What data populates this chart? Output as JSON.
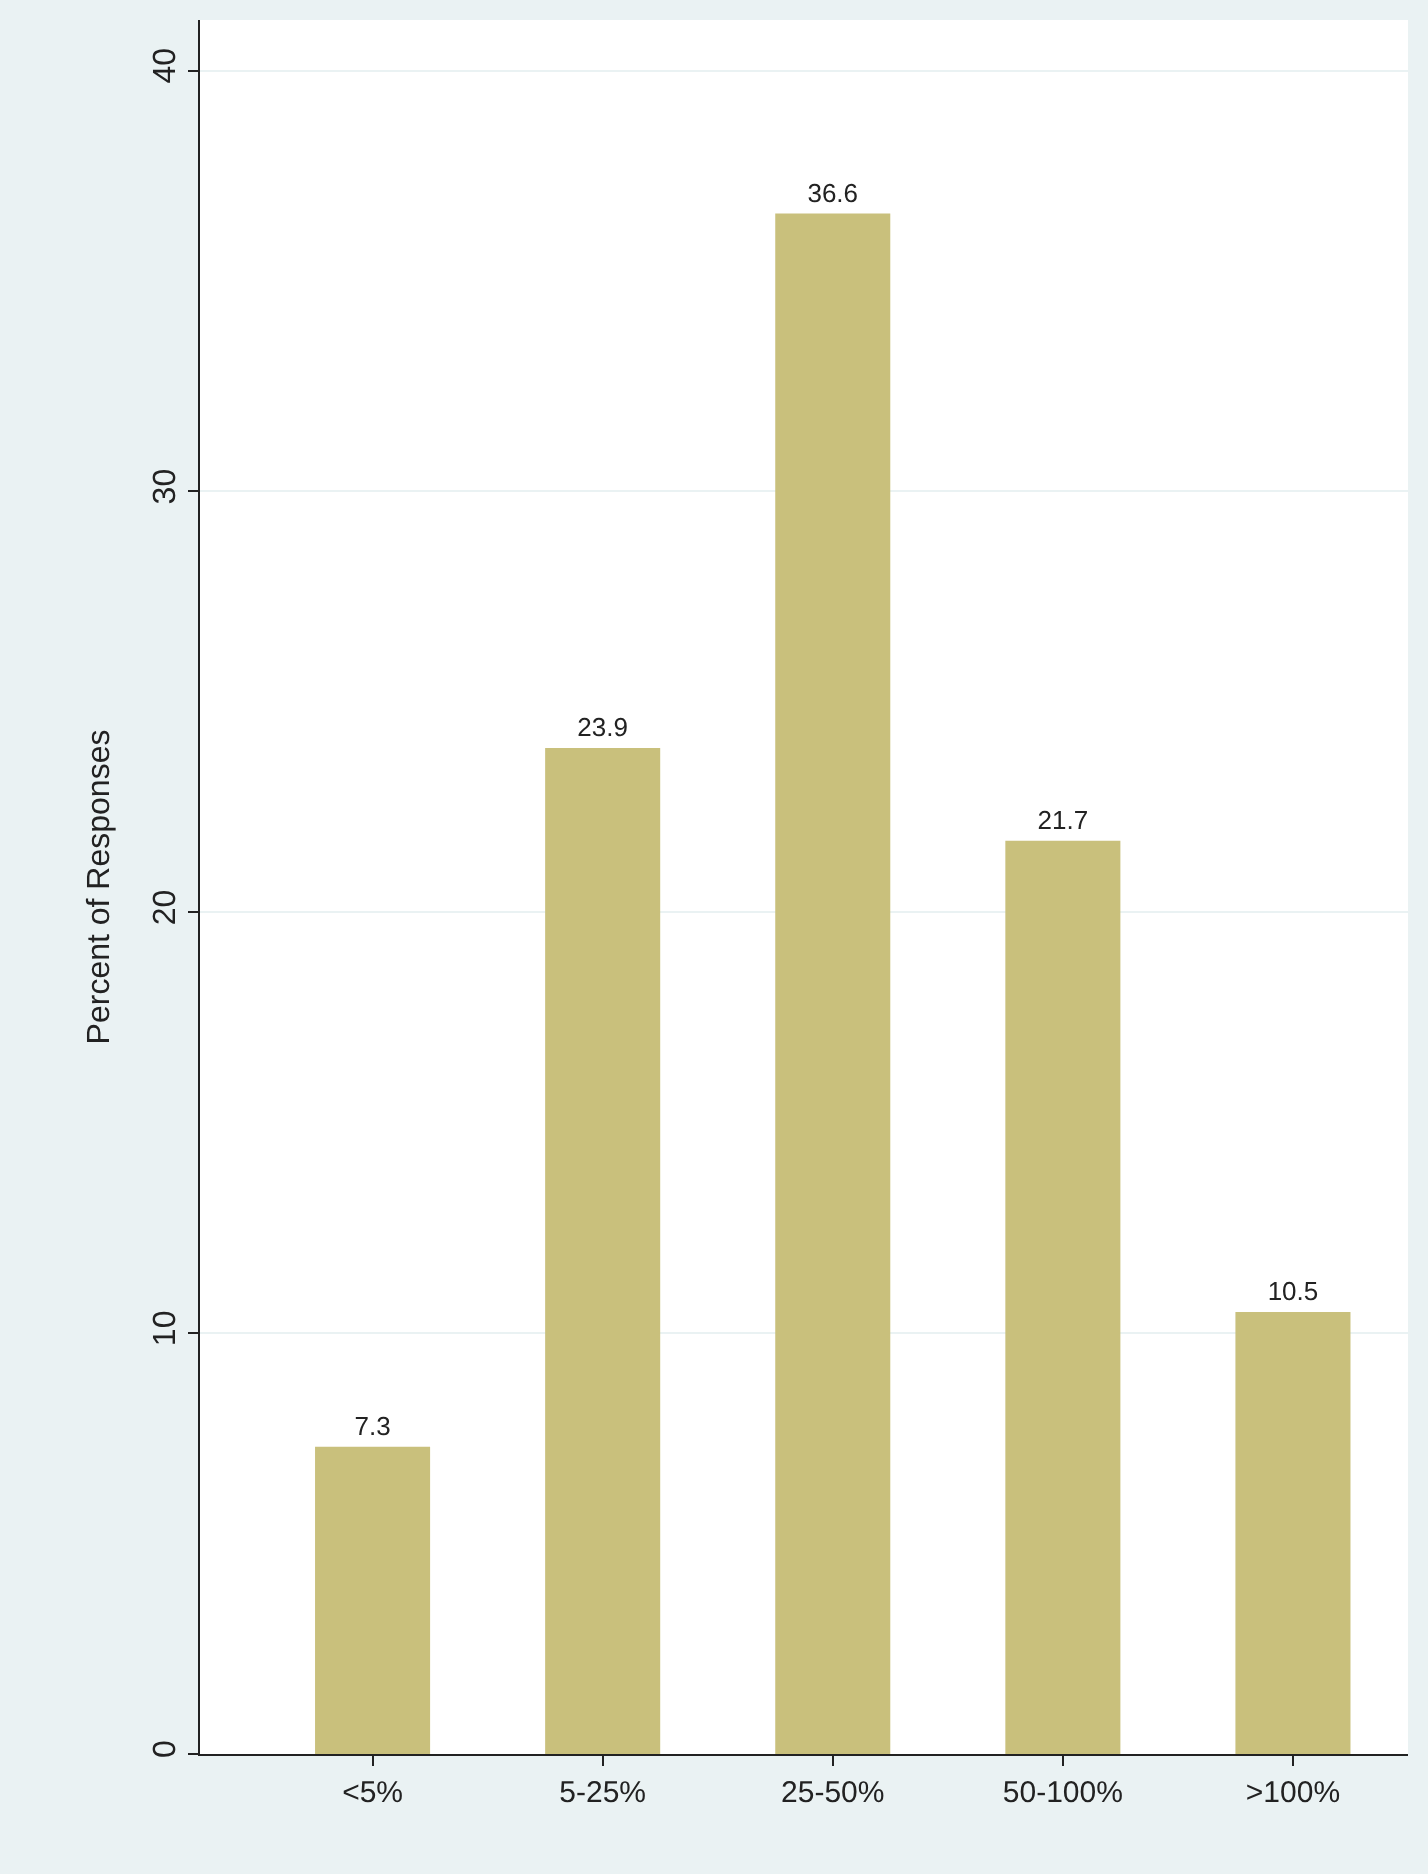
{
  "chart_data": {
    "type": "bar",
    "ylabel": "Percent of Responses",
    "categories": [
      "<5%",
      "5-25%",
      "25-50%",
      "50-100%",
      ">100%"
    ],
    "values": [
      7.3,
      23.9,
      36.6,
      21.7,
      10.5
    ],
    "color": "#c9c07c",
    "data_labels": true,
    "ylim": [
      0,
      41.2
    ],
    "yticks": [
      0,
      10,
      20,
      30,
      40
    ],
    "grid": "y",
    "legend": false
  }
}
